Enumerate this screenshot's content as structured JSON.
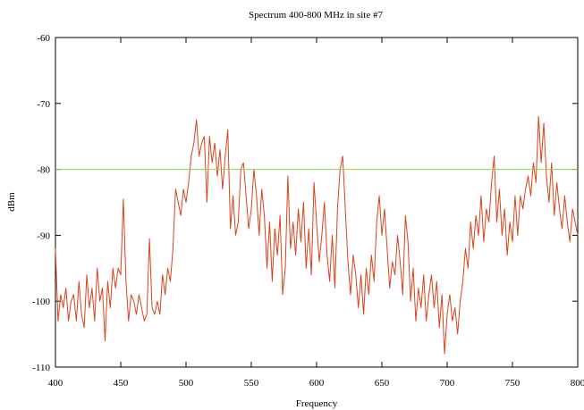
{
  "chart_data": {
    "type": "line",
    "title": "Spectrum 400-800 MHz in site #7",
    "xlabel": "Frequency",
    "ylabel": "dBm",
    "xlim": [
      400,
      800
    ],
    "ylim": [
      -110,
      -60
    ],
    "x_ticks": [
      "400",
      "450",
      "500",
      "550",
      "600",
      "650",
      "700",
      "750",
      "800"
    ],
    "y_ticks": [
      "-60",
      "-70",
      "-80",
      "-90",
      "-100",
      "-110"
    ],
    "grid": false,
    "legend": "none",
    "colors": {
      "spectrum": "#d8431c",
      "threshold": "#8fd24a"
    },
    "series": [
      {
        "key": "spectrum",
        "points": [
          [
            400,
            -92
          ],
          [
            402,
            -103
          ],
          [
            404,
            -99
          ],
          [
            406,
            -101
          ],
          [
            408,
            -98
          ],
          [
            410,
            -103
          ],
          [
            412,
            -100
          ],
          [
            414,
            -99
          ],
          [
            416,
            -103
          ],
          [
            418,
            -97
          ],
          [
            420,
            -102
          ],
          [
            422,
            -104
          ],
          [
            424,
            -96
          ],
          [
            426,
            -101
          ],
          [
            428,
            -98
          ],
          [
            430,
            -103
          ],
          [
            432,
            -95
          ],
          [
            434,
            -100
          ],
          [
            436,
            -98
          ],
          [
            438,
            -106
          ],
          [
            440,
            -97
          ],
          [
            442,
            -101
          ],
          [
            444,
            -95
          ],
          [
            446,
            -98
          ],
          [
            448,
            -95
          ],
          [
            450,
            -96
          ],
          [
            452,
            -84.5
          ],
          [
            454,
            -97
          ],
          [
            456,
            -103
          ],
          [
            458,
            -99
          ],
          [
            460,
            -100
          ],
          [
            462,
            -102
          ],
          [
            464,
            -99
          ],
          [
            466,
            -101
          ],
          [
            468,
            -103
          ],
          [
            470,
            -102
          ],
          [
            472,
            -90.5
          ],
          [
            474,
            -101
          ],
          [
            476,
            -102
          ],
          [
            478,
            -100
          ],
          [
            480,
            -102
          ],
          [
            482,
            -96
          ],
          [
            484,
            -99
          ],
          [
            486,
            -95
          ],
          [
            488,
            -97
          ],
          [
            490,
            -92
          ],
          [
            492,
            -83
          ],
          [
            494,
            -85
          ],
          [
            496,
            -87
          ],
          [
            498,
            -83
          ],
          [
            500,
            -85
          ],
          [
            502,
            -82
          ],
          [
            504,
            -78
          ],
          [
            506,
            -76
          ],
          [
            508,
            -72.5
          ],
          [
            510,
            -78
          ],
          [
            512,
            -76
          ],
          [
            514,
            -75
          ],
          [
            516,
            -85
          ],
          [
            518,
            -75
          ],
          [
            520,
            -79
          ],
          [
            522,
            -76
          ],
          [
            524,
            -81
          ],
          [
            526,
            -77
          ],
          [
            528,
            -83
          ],
          [
            530,
            -78
          ],
          [
            532,
            -74
          ],
          [
            534,
            -89
          ],
          [
            536,
            -84
          ],
          [
            538,
            -90
          ],
          [
            540,
            -88
          ],
          [
            542,
            -80
          ],
          [
            544,
            -79
          ],
          [
            546,
            -84
          ],
          [
            548,
            -89
          ],
          [
            550,
            -86
          ],
          [
            552,
            -80
          ],
          [
            554,
            -84
          ],
          [
            556,
            -90
          ],
          [
            558,
            -83
          ],
          [
            560,
            -87
          ],
          [
            562,
            -95
          ],
          [
            564,
            -88
          ],
          [
            566,
            -97
          ],
          [
            568,
            -89
          ],
          [
            570,
            -93
          ],
          [
            572,
            -87
          ],
          [
            574,
            -99
          ],
          [
            576,
            -95
          ],
          [
            578,
            -81
          ],
          [
            580,
            -92
          ],
          [
            582,
            -88
          ],
          [
            584,
            -93
          ],
          [
            586,
            -86
          ],
          [
            588,
            -91
          ],
          [
            590,
            -85
          ],
          [
            592,
            -95
          ],
          [
            594,
            -89
          ],
          [
            596,
            -96
          ],
          [
            598,
            -82
          ],
          [
            600,
            -88
          ],
          [
            602,
            -94
          ],
          [
            604,
            -90
          ],
          [
            606,
            -85
          ],
          [
            608,
            -93
          ],
          [
            610,
            -97
          ],
          [
            612,
            -90
          ],
          [
            614,
            -98
          ],
          [
            616,
            -86
          ],
          [
            618,
            -80
          ],
          [
            620,
            -78
          ],
          [
            622,
            -86
          ],
          [
            624,
            -94
          ],
          [
            626,
            -99
          ],
          [
            628,
            -93
          ],
          [
            630,
            -96
          ],
          [
            632,
            -101
          ],
          [
            634,
            -96
          ],
          [
            636,
            -102
          ],
          [
            638,
            -95
          ],
          [
            640,
            -99
          ],
          [
            642,
            -93
          ],
          [
            644,
            -97
          ],
          [
            646,
            -88
          ],
          [
            648,
            -84
          ],
          [
            650,
            -90
          ],
          [
            652,
            -86
          ],
          [
            654,
            -92
          ],
          [
            656,
            -98
          ],
          [
            658,
            -94
          ],
          [
            660,
            -96
          ],
          [
            662,
            -90
          ],
          [
            664,
            -94
          ],
          [
            666,
            -99
          ],
          [
            668,
            -87
          ],
          [
            670,
            -91
          ],
          [
            672,
            -100
          ],
          [
            674,
            -95
          ],
          [
            676,
            -103
          ],
          [
            678,
            -98
          ],
          [
            680,
            -101
          ],
          [
            682,
            -96
          ],
          [
            684,
            -103
          ],
          [
            686,
            -99
          ],
          [
            688,
            -96
          ],
          [
            690,
            -101
          ],
          [
            692,
            -97
          ],
          [
            694,
            -104
          ],
          [
            696,
            -99
          ],
          [
            698,
            -108
          ],
          [
            700,
            -102
          ],
          [
            702,
            -99
          ],
          [
            704,
            -103
          ],
          [
            706,
            -101
          ],
          [
            708,
            -105
          ],
          [
            710,
            -100
          ],
          [
            712,
            -97
          ],
          [
            714,
            -92
          ],
          [
            716,
            -95
          ],
          [
            718,
            -88
          ],
          [
            720,
            -92
          ],
          [
            722,
            -87
          ],
          [
            724,
            -90
          ],
          [
            726,
            -84
          ],
          [
            728,
            -91
          ],
          [
            730,
            -86
          ],
          [
            732,
            -88
          ],
          [
            734,
            -82
          ],
          [
            736,
            -78
          ],
          [
            738,
            -88
          ],
          [
            740,
            -83
          ],
          [
            742,
            -90
          ],
          [
            744,
            -86
          ],
          [
            746,
            -93
          ],
          [
            748,
            -88
          ],
          [
            750,
            -91
          ],
          [
            752,
            -84
          ],
          [
            754,
            -90
          ],
          [
            756,
            -84
          ],
          [
            758,
            -86
          ],
          [
            760,
            -83
          ],
          [
            762,
            -81
          ],
          [
            764,
            -84
          ],
          [
            766,
            -79
          ],
          [
            768,
            -82
          ],
          [
            770,
            -72
          ],
          [
            772,
            -79
          ],
          [
            774,
            -73
          ],
          [
            776,
            -81
          ],
          [
            778,
            -85
          ],
          [
            780,
            -79
          ],
          [
            782,
            -87
          ],
          [
            784,
            -82
          ],
          [
            786,
            -86
          ],
          [
            788,
            -89
          ],
          [
            790,
            -84
          ],
          [
            792,
            -88
          ],
          [
            794,
            -91
          ],
          [
            796,
            -86
          ],
          [
            798,
            -88
          ],
          [
            800,
            -90
          ]
        ]
      },
      {
        "key": "threshold",
        "points": [
          [
            400,
            -80
          ],
          [
            800,
            -80
          ]
        ]
      }
    ]
  }
}
